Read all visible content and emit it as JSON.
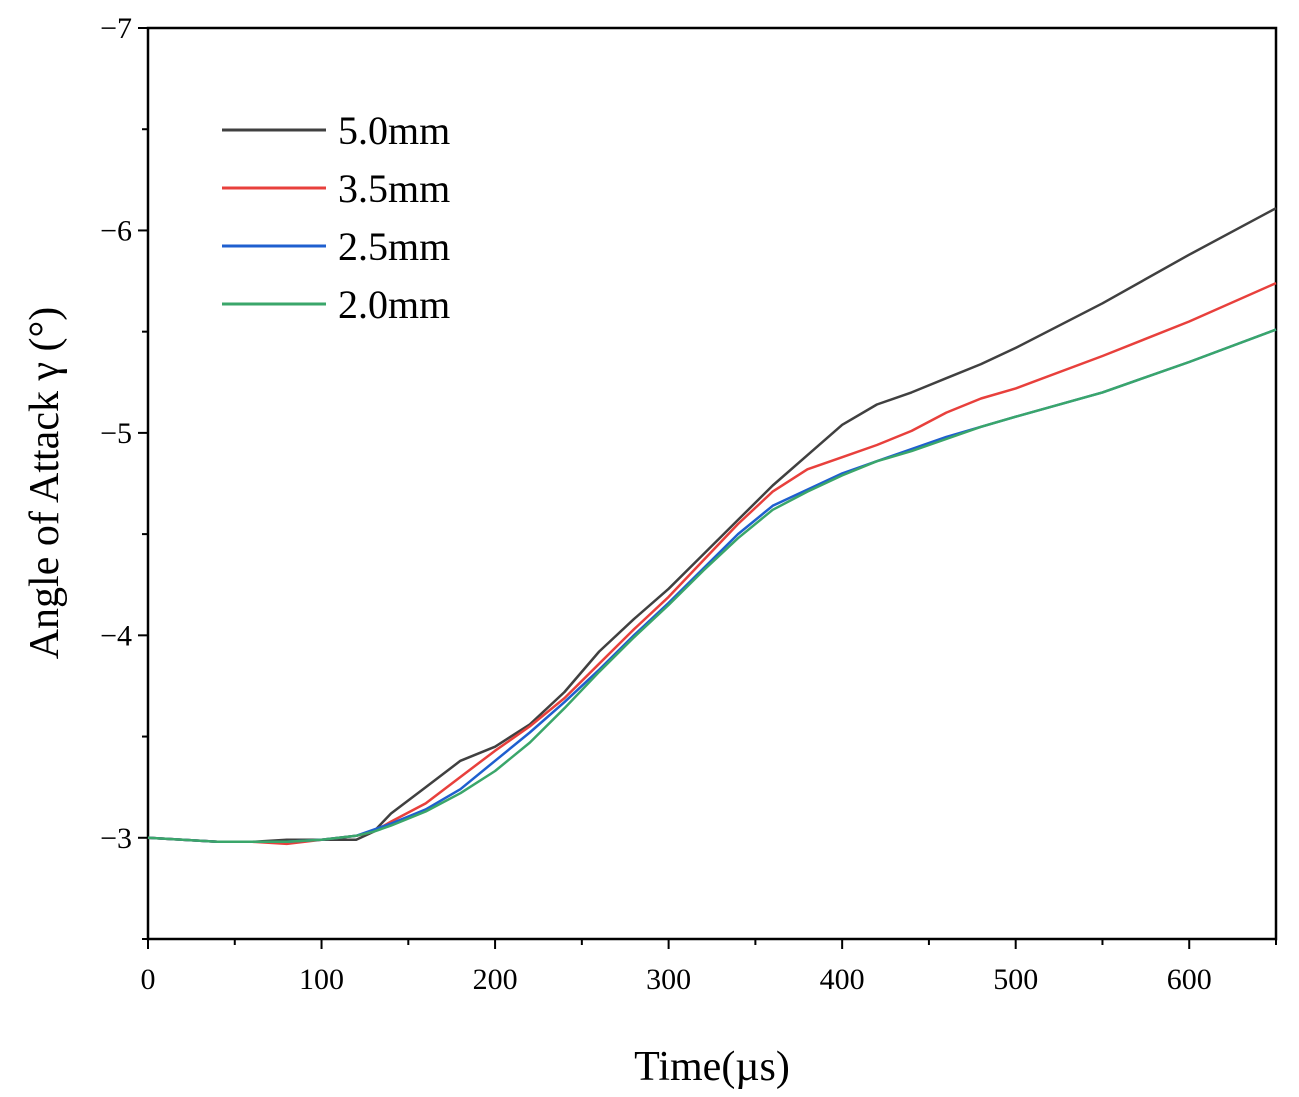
{
  "chart_data": {
    "type": "line",
    "title": "",
    "xlabel": "Time(µs)",
    "ylabel": "Angle of Attack γ (°)",
    "xlim": [
      0,
      650
    ],
    "ylim": [
      -2.5,
      -7
    ],
    "x_ticks": [
      0,
      100,
      200,
      300,
      400,
      500,
      600
    ],
    "x_tick_labels": [
      "0",
      "100",
      "200",
      "300",
      "400",
      "500",
      "600"
    ],
    "y_ticks": [
      -3,
      -4,
      -5,
      -6,
      -7
    ],
    "y_tick_labels": [
      "−3",
      "−4",
      "−5",
      "−6",
      "−7"
    ],
    "legend_position": "top-left",
    "grid": false,
    "series": [
      {
        "name": "5.0mm",
        "color": "#404040",
        "x": [
          0,
          20,
          40,
          60,
          80,
          100,
          120,
          130,
          140,
          160,
          180,
          200,
          220,
          240,
          260,
          280,
          300,
          320,
          340,
          360,
          380,
          400,
          420,
          440,
          460,
          480,
          500,
          550,
          600,
          650
        ],
        "y": [
          -3.0,
          -2.99,
          -2.98,
          -2.98,
          -2.99,
          -2.99,
          -2.99,
          -3.03,
          -3.12,
          -3.25,
          -3.38,
          -3.45,
          -3.56,
          -3.72,
          -3.92,
          -4.08,
          -4.23,
          -4.4,
          -4.57,
          -4.74,
          -4.89,
          -5.04,
          -5.14,
          -5.2,
          -5.27,
          -5.34,
          -5.42,
          -5.64,
          -5.88,
          -6.11
        ]
      },
      {
        "name": "3.5mm",
        "color": "#e8403c",
        "x": [
          0,
          20,
          40,
          60,
          80,
          100,
          120,
          130,
          140,
          160,
          180,
          200,
          220,
          240,
          260,
          280,
          300,
          320,
          340,
          360,
          380,
          400,
          420,
          440,
          460,
          480,
          500,
          550,
          600,
          650
        ],
        "y": [
          -3.0,
          -2.99,
          -2.98,
          -2.98,
          -2.97,
          -2.99,
          -3.01,
          -3.03,
          -3.08,
          -3.17,
          -3.3,
          -3.43,
          -3.55,
          -3.69,
          -3.86,
          -4.03,
          -4.19,
          -4.37,
          -4.55,
          -4.71,
          -4.82,
          -4.88,
          -4.94,
          -5.01,
          -5.1,
          -5.17,
          -5.22,
          -5.38,
          -5.55,
          -5.74
        ]
      },
      {
        "name": "2.5mm",
        "color": "#1f5fcf",
        "x": [
          0,
          20,
          40,
          60,
          80,
          100,
          120,
          130,
          140,
          160,
          180,
          200,
          220,
          240,
          260,
          280,
          300,
          320,
          340,
          360,
          380,
          400,
          420,
          440,
          460,
          480,
          500,
          550,
          600,
          650
        ],
        "y": [
          -3.0,
          -2.99,
          -2.98,
          -2.98,
          -2.98,
          -2.99,
          -3.01,
          -3.04,
          -3.07,
          -3.14,
          -3.24,
          -3.38,
          -3.52,
          -3.67,
          -3.83,
          -4.0,
          -4.16,
          -4.33,
          -4.5,
          -4.64,
          -4.72,
          -4.8,
          -4.86,
          -4.92,
          -4.98,
          -5.03,
          -5.08,
          -5.2,
          -5.35,
          -5.51
        ]
      },
      {
        "name": "2.0mm",
        "color": "#3aa66a",
        "x": [
          0,
          20,
          40,
          60,
          80,
          100,
          120,
          130,
          140,
          160,
          180,
          200,
          220,
          240,
          260,
          280,
          300,
          320,
          340,
          360,
          380,
          400,
          420,
          440,
          460,
          480,
          500,
          550,
          600,
          650
        ],
        "y": [
          -3.0,
          -2.99,
          -2.98,
          -2.98,
          -2.98,
          -2.99,
          -3.01,
          -3.03,
          -3.06,
          -3.13,
          -3.22,
          -3.33,
          -3.47,
          -3.64,
          -3.82,
          -3.99,
          -4.15,
          -4.32,
          -4.48,
          -4.62,
          -4.71,
          -4.79,
          -4.86,
          -4.91,
          -4.97,
          -5.03,
          -5.08,
          -5.2,
          -5.35,
          -5.51
        ]
      }
    ]
  }
}
